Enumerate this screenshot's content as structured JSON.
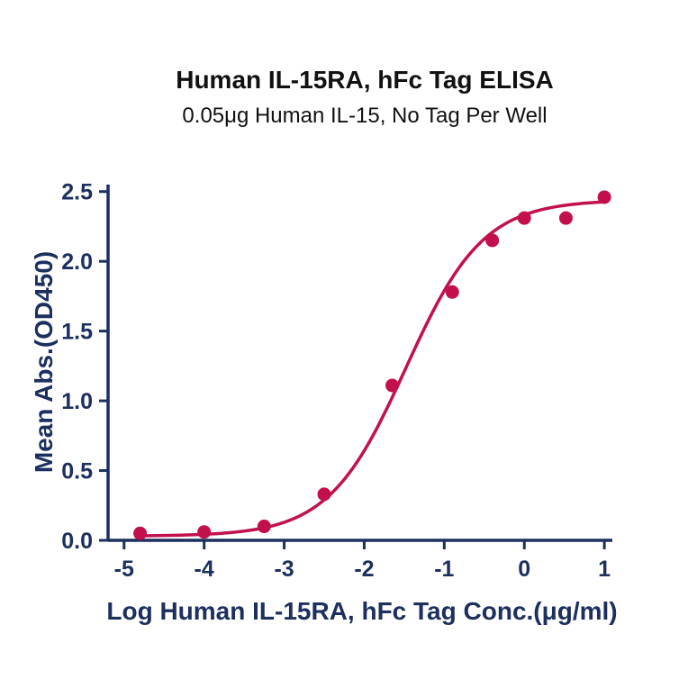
{
  "title": "Human IL-15RA, hFc Tag ELISA",
  "subtitle": "0.05μg Human IL-15, No Tag Per Well",
  "chart_data": {
    "type": "scatter",
    "fit": "4PL sigmoidal dose-response",
    "title": "Human IL-15RA, hFc Tag ELISA",
    "subtitle": "0.05μg Human IL-15, No Tag Per Well",
    "xlabel": "Log Human IL-15RA, hFc Tag Conc.(μg/ml)",
    "ylabel": "Mean Abs.(OD450)",
    "xlim": [
      -5.2,
      1.1
    ],
    "ylim": [
      0,
      2.55
    ],
    "x_ticks": [
      -5,
      -4,
      -3,
      -2,
      -1,
      0,
      1
    ],
    "y_ticks": [
      0.0,
      0.5,
      1.0,
      1.5,
      2.0,
      2.5
    ],
    "grid": false,
    "legend": null,
    "points": [
      {
        "x": -4.8,
        "y": 0.05
      },
      {
        "x": -4.0,
        "y": 0.06
      },
      {
        "x": -3.25,
        "y": 0.1
      },
      {
        "x": -2.5,
        "y": 0.33
      },
      {
        "x": -1.65,
        "y": 1.11
      },
      {
        "x": -0.9,
        "y": 1.78
      },
      {
        "x": -0.4,
        "y": 2.15
      },
      {
        "x": 0.0,
        "y": 2.31
      },
      {
        "x": 0.52,
        "y": 2.31
      },
      {
        "x": 1.0,
        "y": 2.46
      }
    ],
    "fit_params": {
      "bottom": 0.03,
      "top": 2.44,
      "logEC50": -1.48,
      "hillslope": 0.9
    },
    "colors": {
      "curve": "#C2104C",
      "points": "#C2104C",
      "axis": "#1C2F5E",
      "title": "#111111"
    }
  }
}
